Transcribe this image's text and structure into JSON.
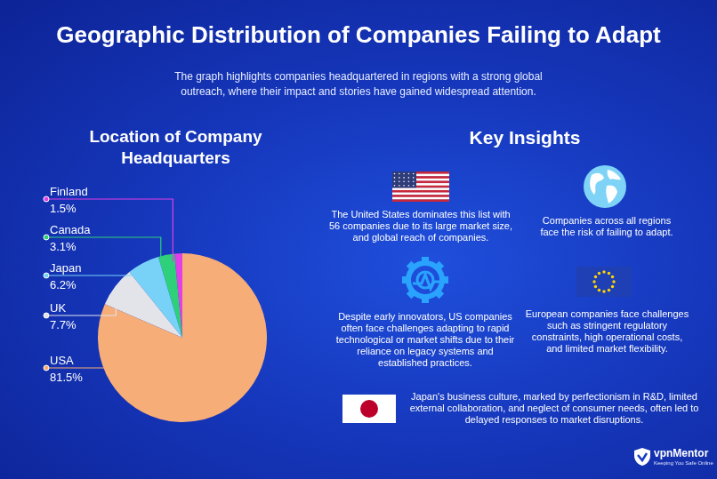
{
  "header": {
    "title": "Geographic Distribution of Companies Failing to Adapt",
    "subtitle": "The graph highlights companies headquartered in regions with a strong global outreach, where their impact and stories have gained widespread attention."
  },
  "chart_data": {
    "type": "pie",
    "title": "Location of Company Headquarters",
    "categories": [
      "Finland",
      "Canada",
      "Japan",
      "UK",
      "USA"
    ],
    "values": [
      1.5,
      3.1,
      6.2,
      7.7,
      81.5
    ],
    "value_labels": [
      "1.5%",
      "3.1%",
      "6.2%",
      "7.7%",
      "81.5%"
    ],
    "colors": [
      "#e23fe6",
      "#2fd07a",
      "#78d2f7",
      "#e2e4ea",
      "#f7ad78"
    ],
    "data_labels": true
  },
  "insights": {
    "title": "Key Insights",
    "items": [
      "The United States dominates this list with 56 companies due to its large market size, and global reach of companies.",
      "Companies across all regions face the risk of failing to adapt.",
      "Despite early innovators, US companies often face challenges adapting to rapid technological or market shifts due to their reliance on legacy systems and established practices.",
      "European companies face challenges such as stringent regulatory constraints, high operational costs, and limited market flexibility.",
      "Japan's business culture, marked by perfectionism in R&D, limited external collaboration, and neglect of consumer needs, often led to delayed responses to market disruptions."
    ]
  },
  "footer": {
    "brand": "vpnMentor",
    "tagline": "Keeping You Safe Online"
  }
}
